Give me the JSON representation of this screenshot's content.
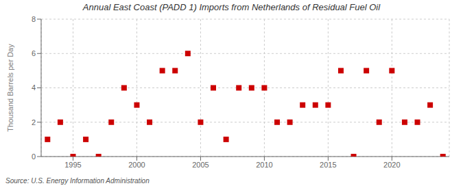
{
  "chart_data": {
    "type": "scatter",
    "title": "Annual East Coast (PADD 1) Imports from Netherlands of Residual Fuel Oil",
    "ylabel": "Thousand Barrels per Day",
    "source": "Source: U.S. Energy Information Administration",
    "color": "#cc0000",
    "marker": "square",
    "grid": true,
    "xlim": [
      1992.5,
      2024.5
    ],
    "ylim": [
      0,
      8
    ],
    "xticks": [
      1995,
      2000,
      2005,
      2010,
      2015,
      2020
    ],
    "yticks": [
      0,
      2,
      4,
      6,
      8
    ],
    "x": [
      1993,
      1994,
      1995,
      1996,
      1997,
      1998,
      1999,
      2000,
      2001,
      2002,
      2003,
      2004,
      2005,
      2006,
      2007,
      2008,
      2009,
      2010,
      2011,
      2012,
      2013,
      2014,
      2015,
      2016,
      2017,
      2018,
      2019,
      2020,
      2021,
      2022,
      2023,
      2024
    ],
    "values": [
      1,
      2,
      0,
      1,
      0,
      2,
      4,
      3,
      2,
      5,
      5,
      6,
      2,
      4,
      1,
      4,
      4,
      4,
      2,
      2,
      3,
      3,
      3,
      5,
      0,
      5,
      2,
      5,
      2,
      2,
      3,
      0
    ]
  }
}
